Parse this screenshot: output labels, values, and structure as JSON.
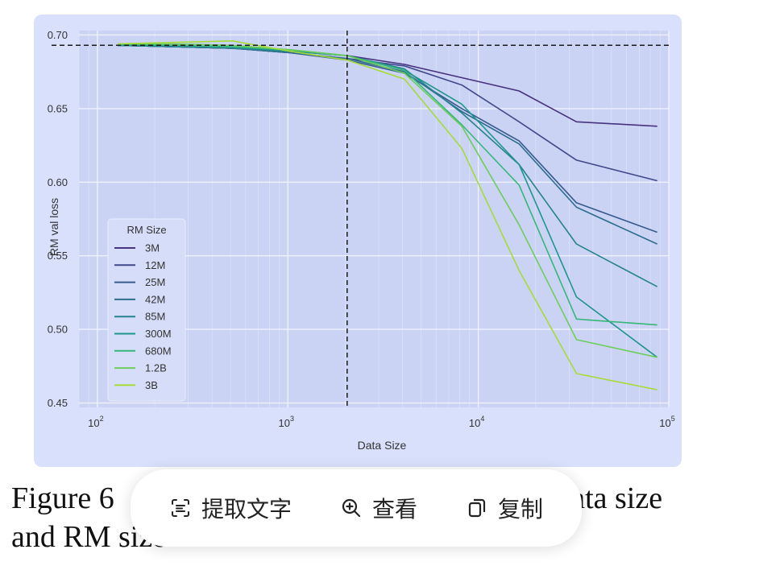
{
  "chart_data": {
    "type": "line",
    "xlabel": "Data Size",
    "ylabel": "RM val loss",
    "xscale": "log",
    "xlim": [
      80,
      100000
    ],
    "ylim": [
      0.447,
      0.703
    ],
    "x_ticks": [
      {
        "value": 100,
        "base": "10",
        "exp": "2"
      },
      {
        "value": 1000,
        "base": "10",
        "exp": "3"
      },
      {
        "value": 10000,
        "base": "10",
        "exp": "4"
      },
      {
        "value": 100000,
        "base": "10",
        "exp": "5"
      }
    ],
    "y_ticks": [
      "0.45",
      "0.50",
      "0.55",
      "0.60",
      "0.65",
      "0.70"
    ],
    "y_tick_values": [
      0.45,
      0.5,
      0.55,
      0.6,
      0.65,
      0.7
    ],
    "grid": true,
    "hline": 0.693,
    "vline": 2048,
    "legend": {
      "title": "RM Size",
      "position": "lower-left"
    },
    "x": [
      128,
      256,
      512,
      1024,
      2048,
      4096,
      8192,
      16384,
      32768,
      87000
    ],
    "series": [
      {
        "name": "3M",
        "color": "#46327e",
        "values": [
          0.693,
          0.692,
          0.691,
          0.689,
          0.686,
          0.68,
          0.671,
          0.662,
          0.641,
          0.638
        ]
      },
      {
        "name": "12M",
        "color": "#3f4889",
        "values": [
          0.693,
          0.692,
          0.691,
          0.688,
          0.684,
          0.679,
          0.666,
          0.641,
          0.615,
          0.601
        ]
      },
      {
        "name": "25M",
        "color": "#375b8d",
        "values": [
          0.693,
          0.692,
          0.691,
          0.688,
          0.683,
          0.674,
          0.65,
          0.628,
          0.586,
          0.566
        ]
      },
      {
        "name": "42M",
        "color": "#2e6e8e",
        "values": [
          0.693,
          0.692,
          0.691,
          0.688,
          0.684,
          0.675,
          0.648,
          0.626,
          0.583,
          0.558
        ]
      },
      {
        "name": "85M",
        "color": "#26828e",
        "values": [
          0.693,
          0.692,
          0.691,
          0.689,
          0.686,
          0.677,
          0.647,
          0.612,
          0.558,
          0.529
        ]
      },
      {
        "name": "300M",
        "color": "#1f968b",
        "values": [
          0.693,
          0.693,
          0.692,
          0.689,
          0.686,
          0.676,
          0.653,
          0.612,
          0.522,
          0.481
        ]
      },
      {
        "name": "680M",
        "color": "#35b779",
        "values": [
          0.694,
          0.693,
          0.692,
          0.69,
          0.686,
          0.676,
          0.639,
          0.598,
          0.507,
          0.503
        ]
      },
      {
        "name": "1.2B",
        "color": "#6ccd5a",
        "values": [
          0.694,
          0.694,
          0.693,
          0.69,
          0.686,
          0.674,
          0.638,
          0.571,
          0.493,
          0.481
        ]
      },
      {
        "name": "3B",
        "color": "#a5db36",
        "values": [
          0.694,
          0.695,
          0.696,
          0.689,
          0.683,
          0.67,
          0.623,
          0.54,
          0.47,
          0.459
        ]
      }
    ]
  },
  "caption": {
    "line1_start": "Figure 6",
    "line1_end": "y data size",
    "line2": "and RM size"
  },
  "toolbar": {
    "extract_text_label": "提取文字",
    "view_label": "查看",
    "copy_label": "复制"
  }
}
